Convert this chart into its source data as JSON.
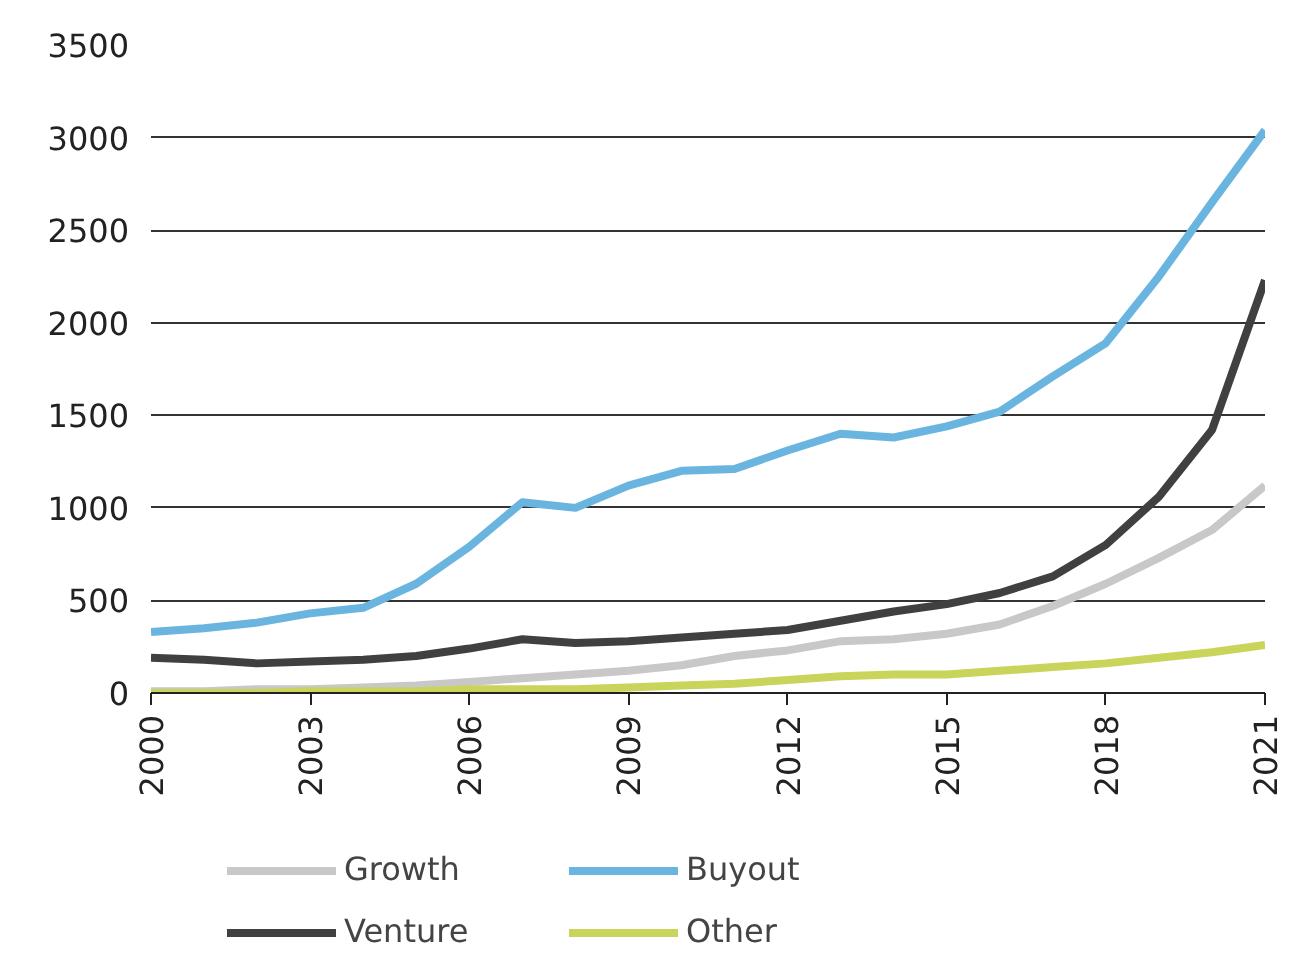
{
  "chart_data": {
    "type": "line",
    "x": [
      2000,
      2001,
      2002,
      2003,
      2004,
      2005,
      2006,
      2007,
      2008,
      2009,
      2010,
      2011,
      2012,
      2013,
      2014,
      2015,
      2016,
      2017,
      2018,
      2019,
      2020,
      2021
    ],
    "series": [
      {
        "name": "Growth",
        "color": "#c8c8c8",
        "values": [
          10,
          10,
          20,
          20,
          30,
          40,
          60,
          80,
          100,
          120,
          150,
          200,
          230,
          280,
          290,
          320,
          370,
          470,
          590,
          730,
          880,
          1120
        ]
      },
      {
        "name": "Venture",
        "color": "#404040",
        "values": [
          190,
          180,
          160,
          170,
          180,
          200,
          240,
          290,
          270,
          280,
          300,
          320,
          340,
          390,
          440,
          480,
          540,
          630,
          800,
          1060,
          1420,
          2230
        ]
      },
      {
        "name": "Buyout",
        "color": "#6ab4e0",
        "values": [
          330,
          350,
          380,
          430,
          460,
          590,
          790,
          1030,
          1000,
          1120,
          1200,
          1210,
          1310,
          1400,
          1380,
          1440,
          1520,
          1710,
          1890,
          2250,
          2650,
          3040
        ]
      },
      {
        "name": "Other",
        "color": "#c8d45a",
        "values": [
          0,
          0,
          0,
          10,
          10,
          10,
          20,
          20,
          20,
          30,
          40,
          50,
          70,
          90,
          100,
          100,
          120,
          140,
          160,
          190,
          220,
          260
        ]
      }
    ],
    "xlim": [
      2000,
      2021
    ],
    "xticks": [
      2000,
      2003,
      2006,
      2009,
      2012,
      2015,
      2018,
      2021
    ],
    "ylim": [
      0,
      3500
    ],
    "yticks": [
      0,
      500,
      1000,
      1500,
      2000,
      2500,
      3000,
      3500
    ],
    "grid": "y",
    "legend": "bottom",
    "marker": "none",
    "line_style": "solid"
  }
}
